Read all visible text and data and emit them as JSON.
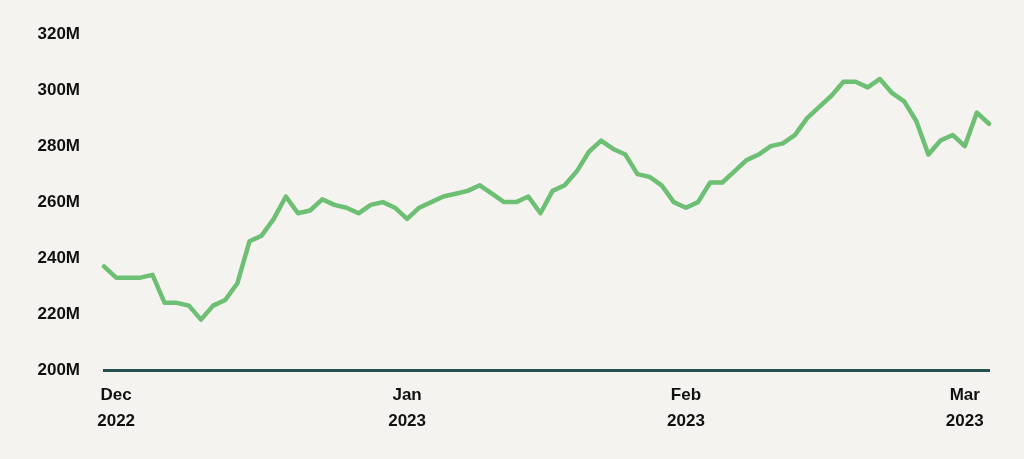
{
  "chart_data": {
    "type": "line",
    "categories": [
      null,
      "Dec 2022",
      null,
      null,
      null,
      null,
      null,
      null,
      null,
      null,
      null,
      null,
      null,
      null,
      null,
      null,
      null,
      null,
      null,
      null,
      null,
      null,
      null,
      null,
      null,
      "Jan 2023",
      null,
      null,
      null,
      null,
      null,
      null,
      null,
      null,
      null,
      null,
      null,
      null,
      null,
      null,
      null,
      null,
      null,
      null,
      null,
      null,
      null,
      null,
      "Feb 2023",
      null,
      null,
      null,
      null,
      null,
      null,
      null,
      null,
      null,
      null,
      null,
      null,
      null,
      null,
      null,
      null,
      null,
      null,
      null,
      null,
      null,
      null,
      "Mar 2023",
      null,
      null
    ],
    "series": [
      {
        "color": "#6cbf73",
        "values": [
          237000000,
          233000000,
          233000000,
          233000000,
          234000000,
          224000000,
          224000000,
          223000000,
          218000000,
          223000000,
          225000000,
          231000000,
          246000000,
          248000000,
          254000000,
          262000000,
          256000000,
          257000000,
          261000000,
          259000000,
          258000000,
          256000000,
          259000000,
          260000000,
          258000000,
          254000000,
          258000000,
          260000000,
          262000000,
          263000000,
          264000000,
          266000000,
          263000000,
          260000000,
          260000000,
          262000000,
          256000000,
          264000000,
          266000000,
          271000000,
          278000000,
          282000000,
          279000000,
          277000000,
          270000000,
          269000000,
          266000000,
          260000000,
          258000000,
          260000000,
          267000000,
          267000000,
          271000000,
          275000000,
          277000000,
          280000000,
          281000000,
          284000000,
          290000000,
          294000000,
          298000000,
          303000000,
          303000000,
          301000000,
          304000000,
          299000000,
          296000000,
          289000000,
          277000000,
          282000000,
          284000000,
          280000000,
          292000000,
          288000000
        ]
      }
    ],
    "ylim": [
      200000000,
      320000000
    ],
    "yticks": [
      {
        "value": 200000000,
        "label": "200M"
      },
      {
        "value": 220000000,
        "label": "220M"
      },
      {
        "value": 240000000,
        "label": "240M"
      },
      {
        "value": 260000000,
        "label": "260M"
      },
      {
        "value": 280000000,
        "label": "280M"
      },
      {
        "value": 300000000,
        "label": "300M"
      },
      {
        "value": 320000000,
        "label": "320M"
      }
    ],
    "marker": "none",
    "line_style": "solid"
  }
}
